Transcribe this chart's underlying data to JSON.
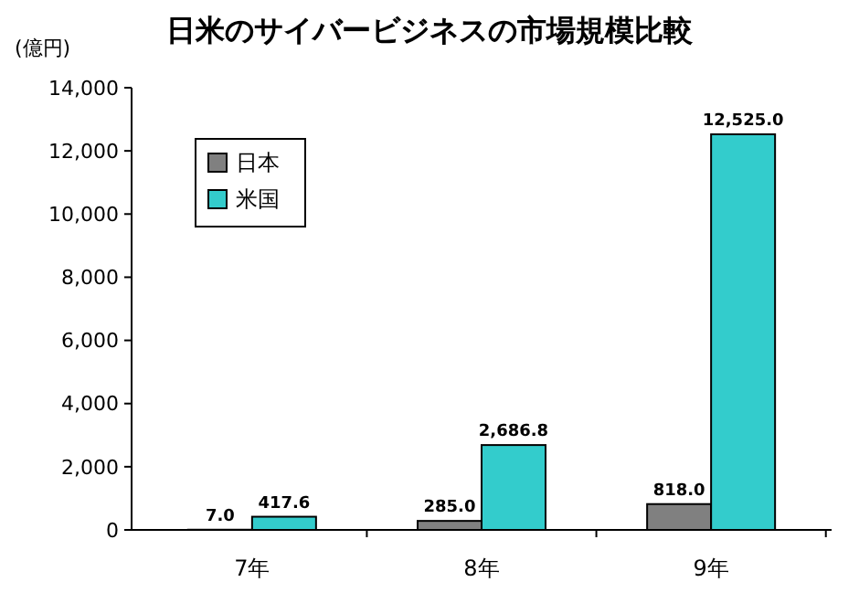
{
  "chart_data": {
    "type": "bar",
    "title": "日米のサイバービジネスの市場規模比較",
    "ylabel": "(億円)",
    "categories": [
      "7年",
      "8年",
      "9年"
    ],
    "series": [
      {
        "name": "日本",
        "color": "#808080",
        "values": [
          7.0,
          285.0,
          818.0
        ],
        "value_labels": [
          "7.0",
          "285.0",
          "818.0"
        ]
      },
      {
        "name": "米国",
        "color": "#33cccc",
        "values": [
          417.6,
          2686.8,
          12525.0
        ],
        "value_labels": [
          "417.6",
          "2,686.8",
          "12,525.0"
        ]
      }
    ],
    "ylim": [
      0,
      14000
    ],
    "yticks": [
      0,
      {
        "value": 2000,
        "label": "2,000"
      },
      {
        "value": 4000,
        "label": "4,000"
      },
      {
        "value": 6000,
        "label": "6,000"
      },
      {
        "value": 8000,
        "label": "8,000"
      },
      {
        "value": 10000,
        "label": "10,000"
      },
      {
        "value": 12000,
        "label": "12,000"
      },
      {
        "value": 14000,
        "label": "14,000"
      }
    ],
    "legend": "top left"
  }
}
